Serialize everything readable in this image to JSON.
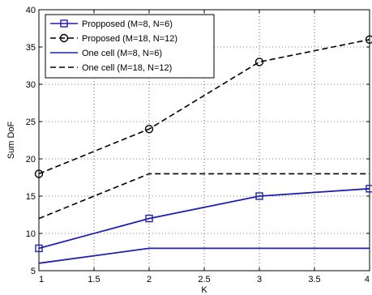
{
  "chart_data": {
    "type": "line",
    "title": "",
    "xlabel": "K",
    "ylabel": "Sum DoF",
    "xlim": [
      1,
      4
    ],
    "ylim": [
      5,
      40
    ],
    "xticks": [
      "1",
      "1.5",
      "2",
      "2.5",
      "3",
      "3.5",
      "4"
    ],
    "yticks": [
      "5",
      "10",
      "15",
      "20",
      "25",
      "30",
      "35",
      "40"
    ],
    "grid": true,
    "legend_position": "top-left",
    "series": [
      {
        "name": "Propposed (M=8, N=6)",
        "x": [
          1,
          2,
          3,
          4
        ],
        "y": [
          8,
          12,
          15,
          16
        ],
        "color": "#1f1fb0",
        "dash": "solid",
        "marker": "square"
      },
      {
        "name": "Proposed (M=18, N=12)",
        "x": [
          1,
          2,
          3,
          4
        ],
        "y": [
          18,
          24,
          33,
          36
        ],
        "color": "#000000",
        "dash": "dashed",
        "marker": "circle"
      },
      {
        "name": "One cell (M=8, N=6)",
        "x": [
          1,
          2,
          3,
          4
        ],
        "y": [
          6,
          8,
          8,
          8
        ],
        "color": "#1f1fb0",
        "dash": "solid",
        "marker": "none"
      },
      {
        "name": "One cell (M=18, N=12)",
        "x": [
          1,
          2,
          3,
          4
        ],
        "y": [
          12,
          18,
          18,
          18
        ],
        "color": "#000000",
        "dash": "dashed",
        "marker": "none"
      }
    ]
  }
}
